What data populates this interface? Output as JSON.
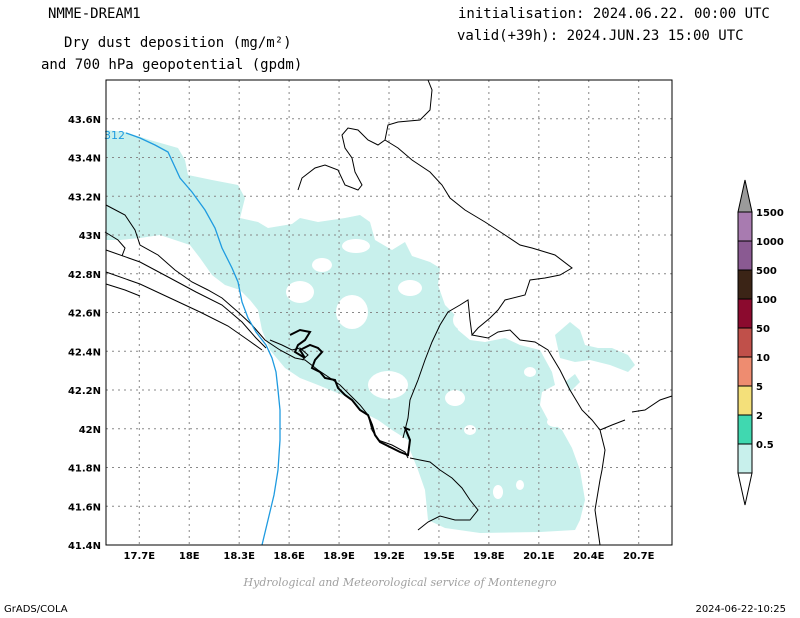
{
  "header": {
    "model": "NMME-DREAM1",
    "product_line1": "Dry dust deposition (mg/m²)",
    "product_line2": "and 700 hPa geopotential (gpdm)",
    "init": "initialisation: 2024.06.22. 00:00 UTC",
    "valid": "valid(+39h): 2024.JUN.23 15:00 UTC"
  },
  "map": {
    "lat_labels": [
      "43.6N",
      "43.4N",
      "43.2N",
      "43N",
      "42.8N",
      "42.6N",
      "42.4N",
      "42.2N",
      "42N",
      "41.8N",
      "41.6N",
      "41.4N"
    ],
    "lon_labels": [
      "17.7E",
      "18E",
      "18.3E",
      "18.6E",
      "18.9E",
      "19.2E",
      "19.5E",
      "19.8E",
      "20.1E",
      "20.4E",
      "20.7E"
    ],
    "lat_range": [
      41.4,
      43.8
    ],
    "lon_range": [
      17.5,
      20.9
    ],
    "contour_label": "312",
    "contour_color": "#1f9be0",
    "dust_fill_color": "#c8f0ec"
  },
  "legend": {
    "levels": [
      {
        "label": "1500",
        "color": "#a87bb0"
      },
      {
        "label": "1000",
        "color": "#8a5a92"
      },
      {
        "label": "500",
        "color": "#3b2416"
      },
      {
        "label": "100",
        "color": "#8b0a2e"
      },
      {
        "label": "50",
        "color": "#c0504a"
      },
      {
        "label": "10",
        "color": "#ee8c70"
      },
      {
        "label": "5",
        "color": "#f4e07a"
      },
      {
        "label": "2",
        "color": "#40d8b0"
      },
      {
        "label": "0.5",
        "color": "#c8f0ec"
      }
    ],
    "top_arrow_color": "#9a9a9a",
    "bottom_arrow_color": "#ffffff"
  },
  "credit": "Hydrological and Meteorological service of Montenegro",
  "footer": {
    "left": "GrADS/COLA",
    "right": "2024-06-22-10:25"
  }
}
